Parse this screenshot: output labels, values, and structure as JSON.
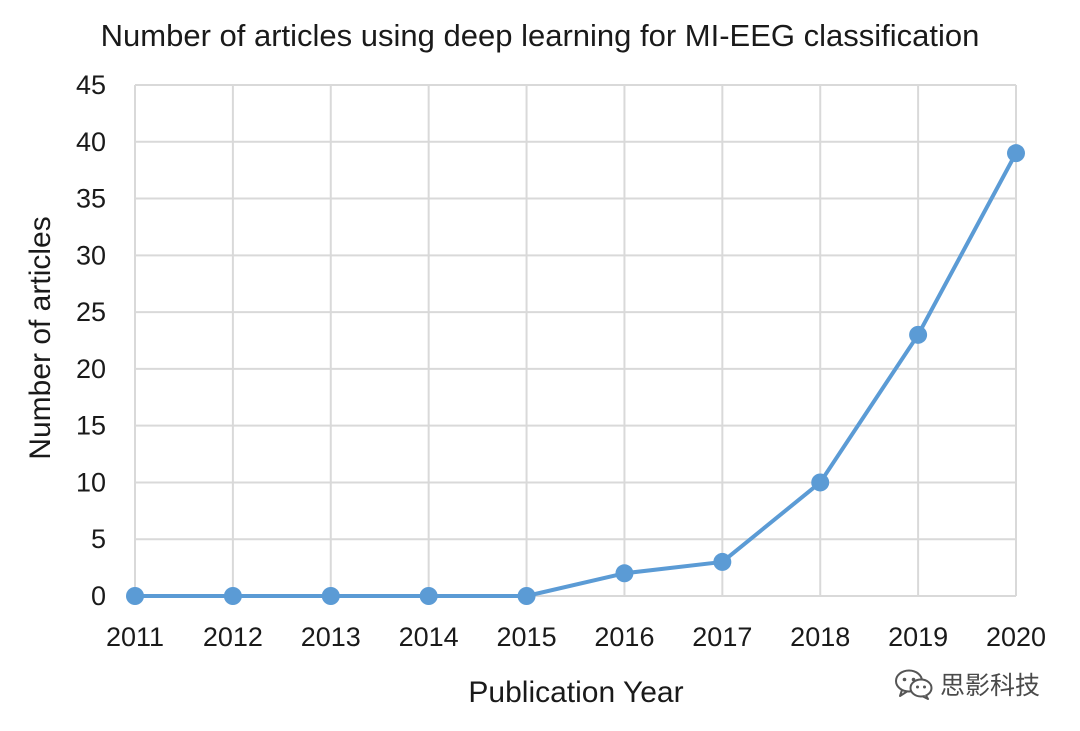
{
  "chart_data": {
    "type": "line",
    "title": "Number of articles using deep learning for MI-EEG classification",
    "xlabel": "Publication Year",
    "ylabel": "Number of articles",
    "categories": [
      "2011",
      "2012",
      "2013",
      "2014",
      "2015",
      "2016",
      "2017",
      "2018",
      "2019",
      "2020"
    ],
    "series": [
      {
        "values": [
          0,
          0,
          0,
          0,
          0,
          2,
          3,
          10,
          23,
          39
        ]
      }
    ],
    "ylim": [
      0,
      45
    ],
    "yticks": [
      0,
      5,
      10,
      15,
      20,
      25,
      30,
      35,
      40,
      45
    ],
    "grid": true,
    "legend": "none",
    "line_color": "#5b9bd5",
    "grid_color": "#d9d9d9"
  },
  "watermark": {
    "text": "思影科技",
    "icon": "wechat-icon"
  }
}
